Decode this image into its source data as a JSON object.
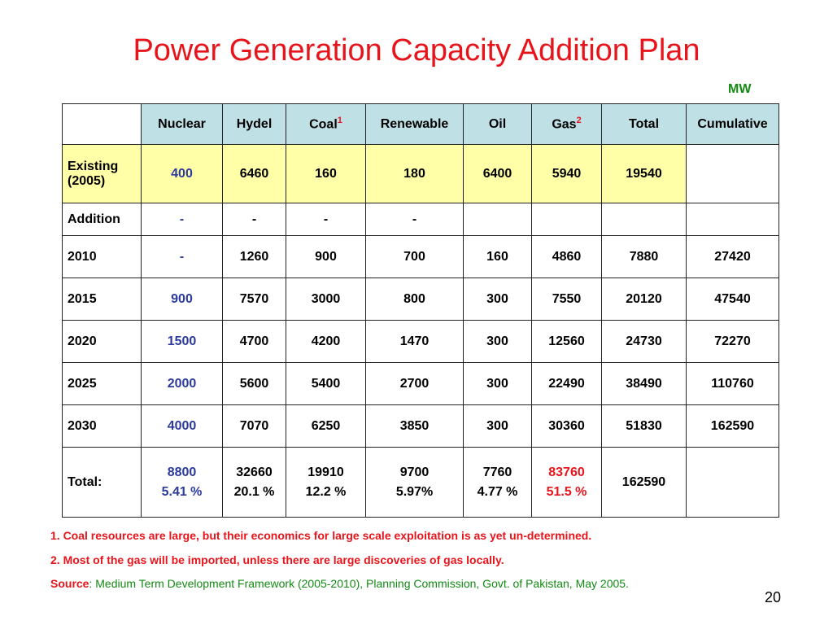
{
  "title": "Power Generation Capacity Addition Plan",
  "unit": "MW",
  "table": {
    "headers": {
      "nuclear": "Nuclear",
      "hydel": "Hydel",
      "coal": "Coal",
      "coal_sup": "1",
      "renewable": "Renewable",
      "oil": "Oil",
      "gas": "Gas",
      "gas_sup": "2",
      "total": "Total",
      "cumulative": "Cumulative"
    },
    "existing": {
      "label": "Existing (2005)",
      "cells": [
        "400",
        "6460",
        "160",
        "180",
        "6400",
        "5940",
        "19540",
        ""
      ]
    },
    "addition": {
      "label": "Addition",
      "cells": [
        "-",
        "-",
        "-",
        "-",
        "",
        "",
        "",
        ""
      ]
    },
    "years": [
      {
        "label": "2010",
        "cells": [
          "-",
          "1260",
          "900",
          "700",
          "160",
          "4860",
          "7880",
          "27420"
        ]
      },
      {
        "label": "2015",
        "cells": [
          "900",
          "7570",
          "3000",
          "800",
          "300",
          "7550",
          "20120",
          "47540"
        ]
      },
      {
        "label": "2020",
        "cells": [
          "1500",
          "4700",
          "4200",
          "1470",
          "300",
          "12560",
          "24730",
          "72270"
        ]
      },
      {
        "label": "2025",
        "cells": [
          "2000",
          "5600",
          "5400",
          "2700",
          "300",
          "22490",
          "38490",
          "110760"
        ]
      },
      {
        "label": "2030",
        "cells": [
          "4000",
          "7070",
          "6250",
          "3850",
          "300",
          "30360",
          "51830",
          "162590"
        ]
      }
    ],
    "totals": {
      "label": "Total:",
      "nuclear": {
        "value": "8800",
        "pct": "5.41 %"
      },
      "hydel": {
        "value": "32660",
        "pct": "20.1 %"
      },
      "coal": {
        "value": "19910",
        "pct": "12.2 %"
      },
      "renewable": {
        "value": "9700",
        "pct": "5.97%"
      },
      "oil": {
        "value": "7760",
        "pct": "4.77 %"
      },
      "gas": {
        "value": "83760",
        "pct": "51.5 %"
      },
      "total": "162590",
      "cumulative": ""
    }
  },
  "notes": {
    "note1": "1. Coal resources are large, but their economics for large scale exploitation is as yet un-determined.",
    "note2": "2. Most of the gas will be imported, unless there are large discoveries of gas locally.",
    "source_label": "Source",
    "source_text": ": Medium Term Development Framework (2005-2010), Planning Commission, Govt. of Pakistan, May 2005."
  },
  "page_number": "20",
  "colors": {
    "title": "#e8141b",
    "header_bg": "#bfe1e6",
    "existing_bg": "#ffffa8",
    "nuclear_text": "#2c3a9e",
    "source_text": "#138a13"
  }
}
